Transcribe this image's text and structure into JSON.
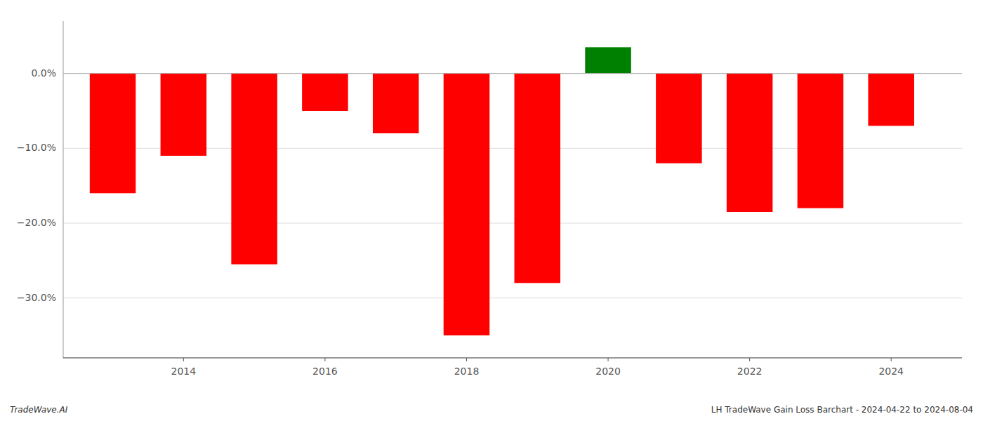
{
  "chart_data": {
    "type": "bar",
    "x": [
      2013,
      2014,
      2015,
      2016,
      2017,
      2018,
      2019,
      2020,
      2021,
      2022,
      2023,
      2024
    ],
    "values": [
      -16.0,
      -11.0,
      -25.5,
      -5.0,
      -8.0,
      -35.0,
      -28.0,
      3.5,
      -12.0,
      -18.5,
      -18.0,
      -7.0
    ],
    "colors": [
      "#ff0000",
      "#ff0000",
      "#ff0000",
      "#ff0000",
      "#ff0000",
      "#ff0000",
      "#ff0000",
      "#008000",
      "#ff0000",
      "#ff0000",
      "#ff0000",
      "#ff0000"
    ],
    "xlim": [
      2012.3,
      2025.0
    ],
    "xticks": [
      2014,
      2016,
      2018,
      2020,
      2022,
      2024
    ],
    "ylim": [
      -38,
      7
    ],
    "yticks": [
      {
        "value": 0.0,
        "label": "0.0%"
      },
      {
        "value": -10.0,
        "label": "−10.0%"
      },
      {
        "value": -20.0,
        "label": "−20.0%"
      },
      {
        "value": -30.0,
        "label": "−30.0%"
      }
    ],
    "grid": true,
    "annotations": [
      "TradeWave.AI",
      "LH TradeWave Gain Loss Barchart - 2024-04-22 to 2024-08-04"
    ]
  }
}
